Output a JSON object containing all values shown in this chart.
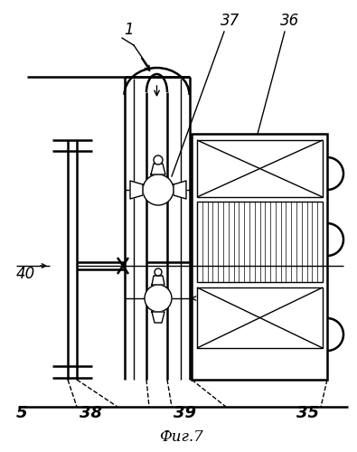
{
  "title": "Фиг.7",
  "bg_color": "#ffffff",
  "line_color": "#000000",
  "figsize": [
    3.95,
    5.0
  ],
  "dpi": 100,
  "lw": 1.0,
  "lw_thick": 1.8
}
